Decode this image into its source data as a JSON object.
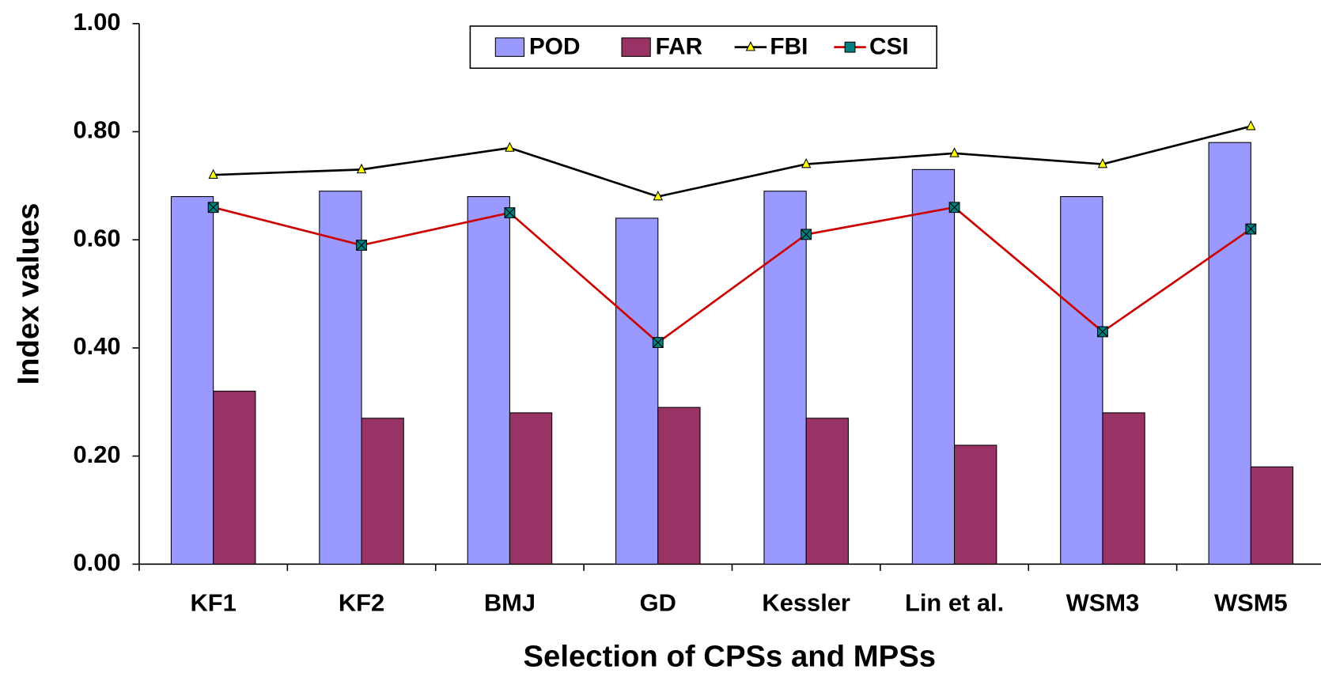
{
  "chart_data": {
    "type": "bar",
    "x_label": "Selection of CPSs and MPSs",
    "y_label": "Index values",
    "categories": [
      "KF1",
      "KF2",
      "BMJ",
      "GD",
      "Kessler",
      "Lin et al.",
      "WSM3",
      "WSM5"
    ],
    "series": [
      {
        "name": "POD",
        "type": "bar",
        "color": "#9999ff",
        "values": [
          0.68,
          0.69,
          0.68,
          0.64,
          0.69,
          0.73,
          0.68,
          0.78
        ]
      },
      {
        "name": "FAR",
        "type": "bar",
        "color": "#993366",
        "values": [
          0.32,
          0.27,
          0.28,
          0.29,
          0.27,
          0.22,
          0.28,
          0.18
        ]
      },
      {
        "name": "FBI",
        "type": "line",
        "color": "#000000",
        "marker": "triangle",
        "marker_color": "#ffff00",
        "values": [
          0.72,
          0.73,
          0.77,
          0.68,
          0.74,
          0.76,
          0.74,
          0.81
        ]
      },
      {
        "name": "CSI",
        "type": "line",
        "color": "#cc0000",
        "marker": "square",
        "marker_color": "#008080",
        "values": [
          0.66,
          0.59,
          0.65,
          0.41,
          0.61,
          0.66,
          0.43,
          0.62
        ]
      }
    ],
    "ylim": [
      0,
      1
    ],
    "yticks": [
      {
        "value": 0,
        "label": "0.00"
      },
      {
        "value": 0.2,
        "label": "0.20"
      },
      {
        "value": 0.4,
        "label": "0.40"
      },
      {
        "value": 0.6,
        "label": "0.60"
      },
      {
        "value": 0.8,
        "label": "0.80"
      },
      {
        "value": 1,
        "label": "1.00"
      }
    ],
    "grid": false,
    "legend": "top"
  }
}
